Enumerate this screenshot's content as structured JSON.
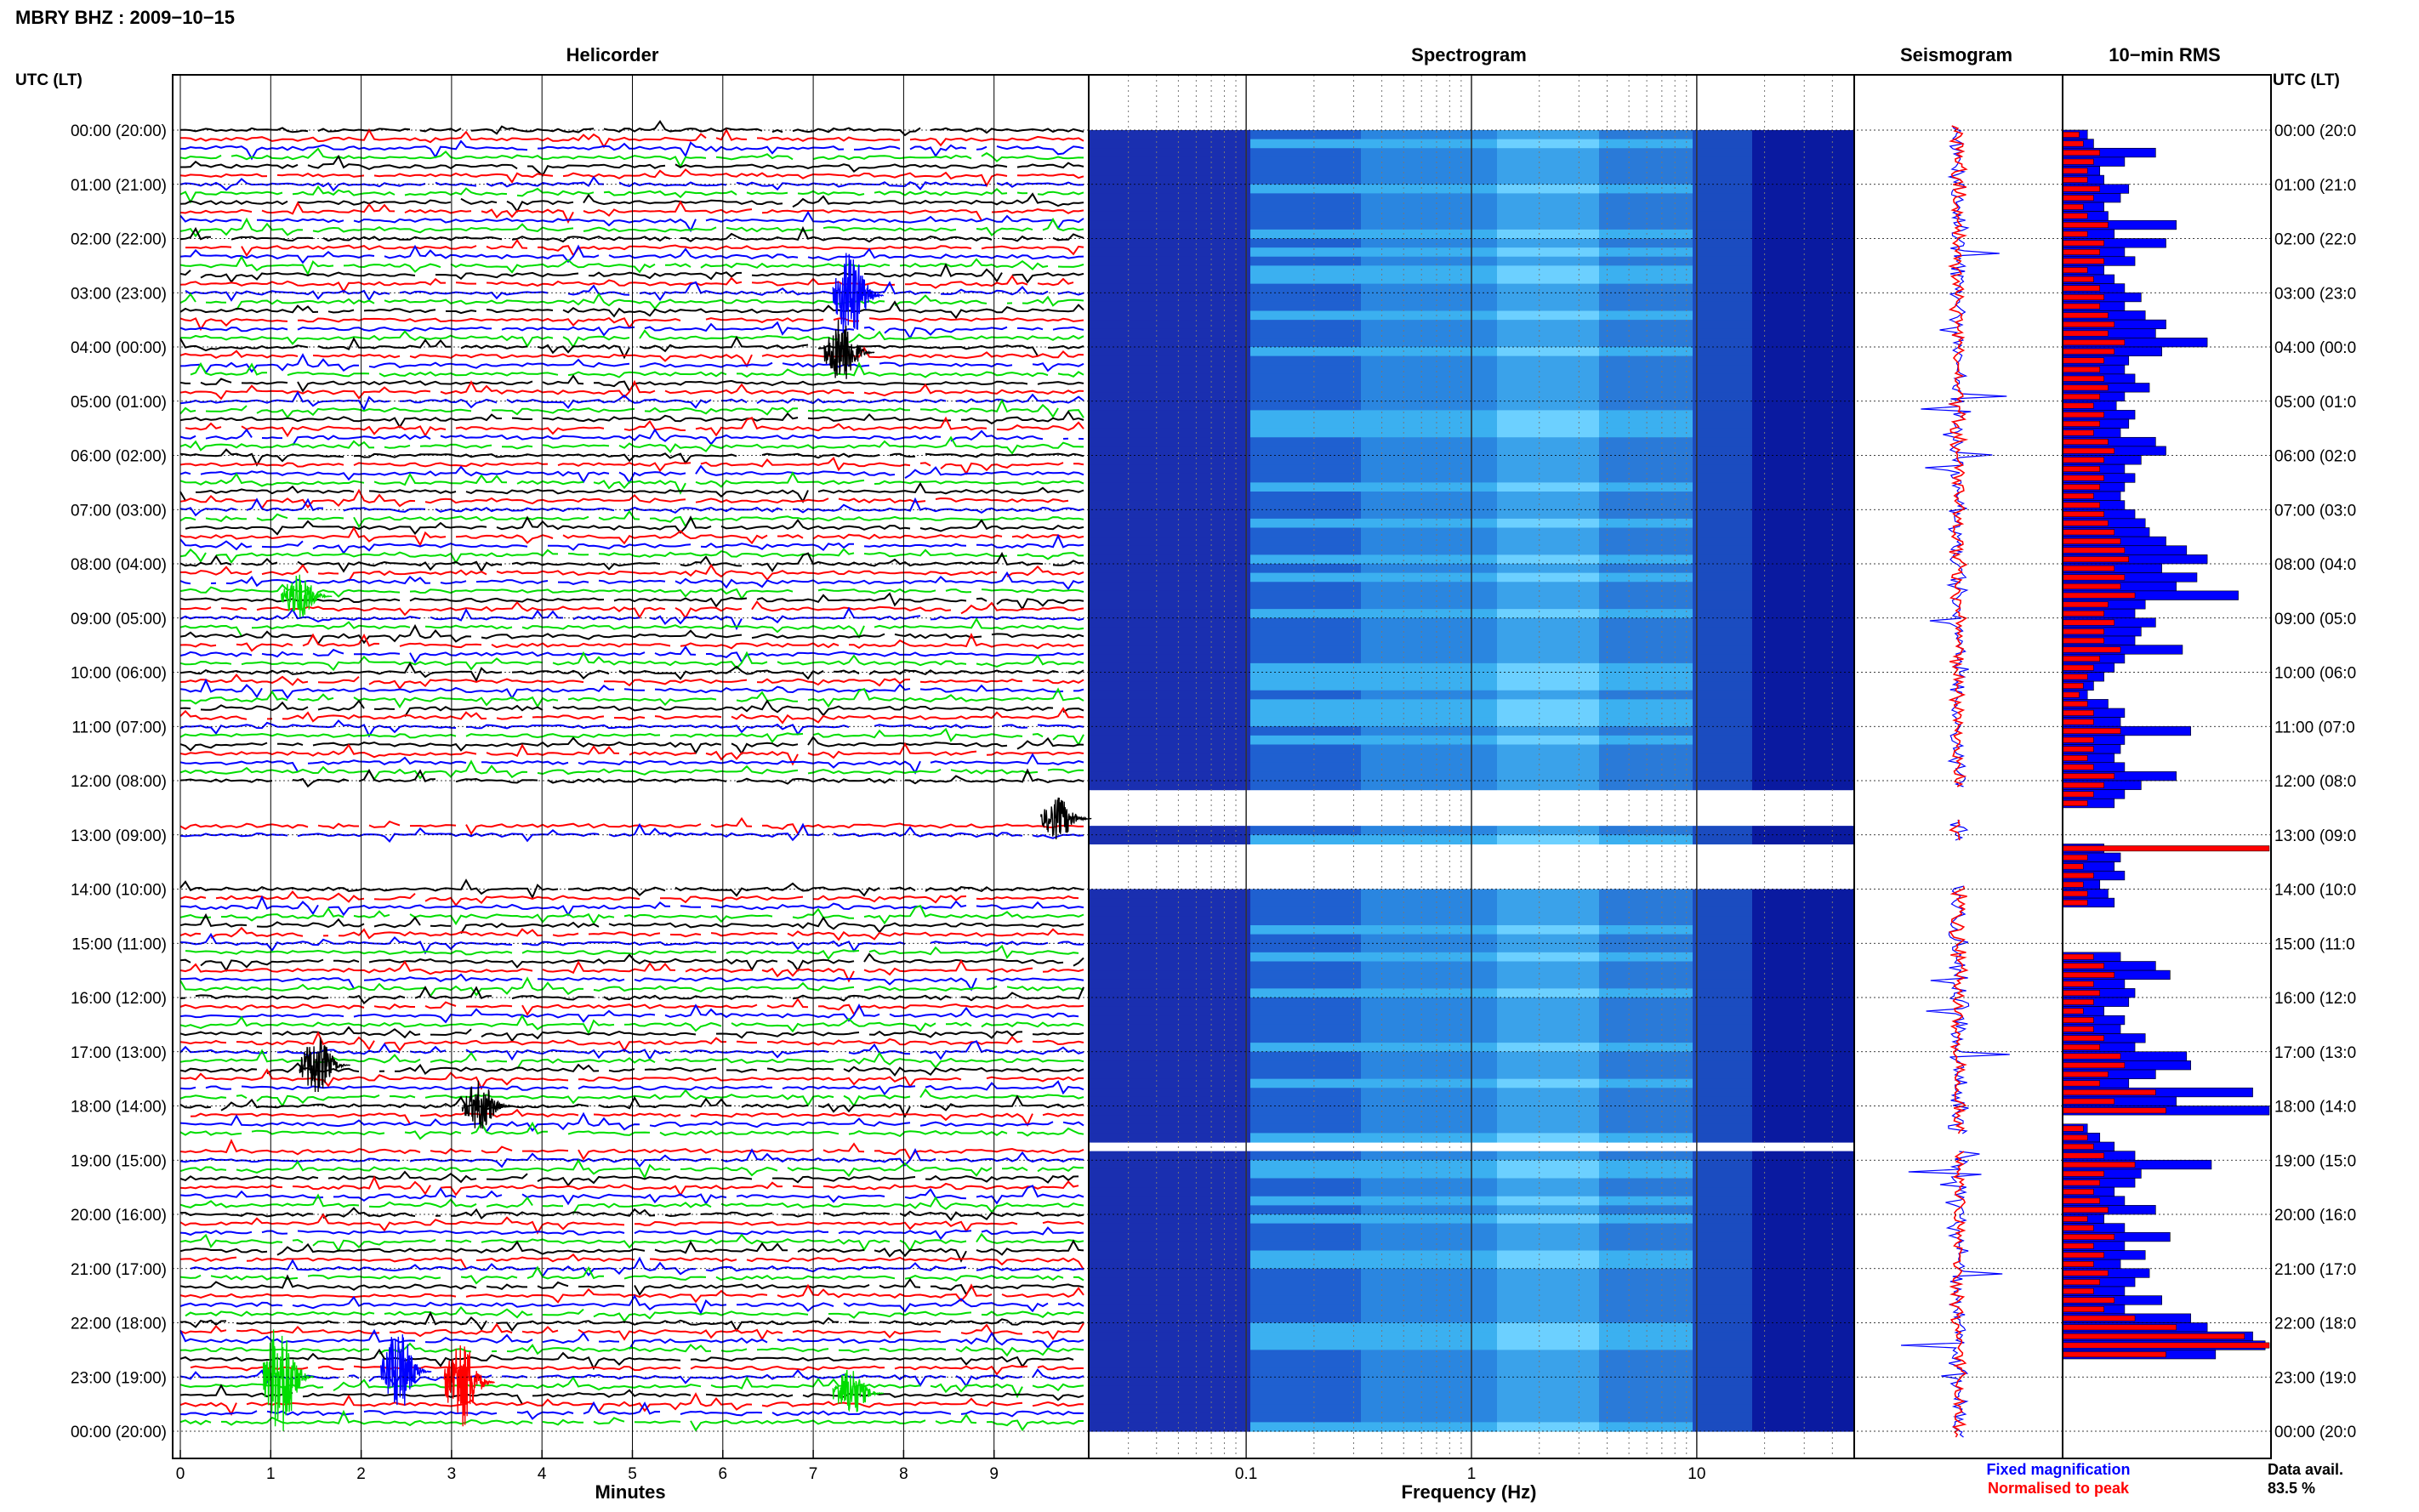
{
  "station_title": "MBRY BHZ : 2009−10−15",
  "panels": {
    "helicorder": "Helicorder",
    "spectrogram": "Spectrogram",
    "seismogram": "Seismogram",
    "rms": "10−min RMS"
  },
  "axis_header_left": "UTC (LT)",
  "axis_header_right": "UTC (LT)",
  "legend": {
    "fixed": "Fixed magnification",
    "normalised": "Normalised to peak",
    "fixed_color": "#0000ff",
    "normalised_color": "#ff0000"
  },
  "data_avail": {
    "label": "Data avail.",
    "value": "83.5 %"
  },
  "colors": {
    "trace_cycle": [
      "#000000",
      "#ff0000",
      "#0000ff",
      "#00dd00"
    ],
    "spec_low": "#0a1aa0",
    "spec_mid": "#1e8fe0",
    "spec_high": "#7fd4ff"
  },
  "chart_data": {
    "type": "heatmap",
    "time_labels": [
      "00:00 (20:00)",
      "01:00 (21:00)",
      "02:00 (22:00)",
      "03:00 (23:00)",
      "04:00 (00:00)",
      "05:00 (01:00)",
      "06:00 (02:00)",
      "07:00 (03:00)",
      "08:00 (04:00)",
      "09:00 (05:00)",
      "10:00 (06:00)",
      "11:00 (07:00)",
      "12:00 (08:00)",
      "13:00 (09:00)",
      "14:00 (10:00)",
      "15:00 (11:00)",
      "16:00 (12:00)",
      "17:00 (13:00)",
      "18:00 (14:00)",
      "19:00 (15:00)",
      "20:00 (16:00)",
      "21:00 (17:00)",
      "22:00 (18:00)",
      "23:00 (19:00)",
      "00:00 (20:00)"
    ],
    "time_labels_right": [
      "00:00 (20:0",
      "01:00 (21:0",
      "02:00 (22:0",
      "03:00 (23:0",
      "04:00 (00:0",
      "05:00 (01:0",
      "06:00 (02:0",
      "07:00 (03:0",
      "08:00 (04:0",
      "09:00 (05:0",
      "10:00 (06:0",
      "11:00 (07:0",
      "12:00 (08:0",
      "13:00 (09:0",
      "14:00 (10:0",
      "15:00 (11:0",
      "16:00 (12:0",
      "17:00 (13:0",
      "18:00 (14:0",
      "19:00 (15:0",
      "20:00 (16:0",
      "21:00 (17:0",
      "22:00 (18:0",
      "23:00 (19:0",
      "00:00 (20:0"
    ],
    "helicorder": {
      "xlabel": "Minutes",
      "x_ticks": [
        "0",
        "1",
        "2",
        "3",
        "4",
        "5",
        "6",
        "7",
        "8",
        "9"
      ],
      "xlim": [
        0,
        10
      ],
      "rows_per_hour": 6,
      "gaps_hours": [
        [
          12.15,
          12.7
        ],
        [
          13.1,
          13.9
        ],
        [
          18.55,
          18.8
        ]
      ]
    },
    "spectrogram": {
      "xlabel": "Frequency (Hz)",
      "x_ticks": [
        "0.1",
        "1",
        "10"
      ],
      "x_scale": "log",
      "xlim": [
        0.02,
        50
      ]
    },
    "rms_blue": [
      0.12,
      0.15,
      0.45,
      0.3,
      0.18,
      0.2,
      0.32,
      0.28,
      0.2,
      0.22,
      0.55,
      0.25,
      0.5,
      0.3,
      0.35,
      0.2,
      0.25,
      0.3,
      0.38,
      0.3,
      0.4,
      0.5,
      0.45,
      0.7,
      0.48,
      0.32,
      0.3,
      0.35,
      0.42,
      0.3,
      0.26,
      0.35,
      0.32,
      0.28,
      0.45,
      0.5,
      0.38,
      0.3,
      0.35,
      0.3,
      0.28,
      0.3,
      0.35,
      0.4,
      0.42,
      0.5,
      0.6,
      0.7,
      0.48,
      0.65,
      0.55,
      0.85,
      0.4,
      0.35,
      0.45,
      0.38,
      0.35,
      0.58,
      0.3,
      0.25,
      0.2,
      0.15,
      0.12,
      0.22,
      0.3,
      0.28,
      0.62,
      0.3,
      0.28,
      0.25,
      0.3,
      0.55,
      0.38,
      0.3,
      0.25,
      0.0,
      0.0,
      0.0,
      0.0,
      0.2,
      0.28,
      0.25,
      0.3,
      0.18,
      0.22,
      0.25,
      0.0,
      0.0,
      0.0,
      0.0,
      0.0,
      0.28,
      0.45,
      0.52,
      0.3,
      0.35,
      0.32,
      0.2,
      0.3,
      0.28,
      0.4,
      0.35,
      0.6,
      0.62,
      0.45,
      0.32,
      0.92,
      0.55,
      1.0,
      0.0,
      0.12,
      0.18,
      0.25,
      0.35,
      0.72,
      0.38,
      0.35,
      0.25,
      0.3,
      0.45,
      0.2,
      0.3,
      0.52,
      0.3,
      0.4,
      0.28,
      0.42,
      0.35,
      0.3,
      0.48,
      0.3,
      0.62,
      0.7,
      0.92,
      0.98,
      0.74
    ],
    "rms_red": [
      0.08,
      0.1,
      0.18,
      0.15,
      0.12,
      0.12,
      0.18,
      0.15,
      0.1,
      0.12,
      0.22,
      0.12,
      0.2,
      0.18,
      0.2,
      0.12,
      0.15,
      0.18,
      0.2,
      0.18,
      0.22,
      0.25,
      0.22,
      0.3,
      0.25,
      0.2,
      0.18,
      0.2,
      0.22,
      0.18,
      0.15,
      0.2,
      0.18,
      0.15,
      0.22,
      0.25,
      0.2,
      0.18,
      0.2,
      0.18,
      0.15,
      0.18,
      0.2,
      0.22,
      0.25,
      0.28,
      0.3,
      0.32,
      0.25,
      0.3,
      0.28,
      0.35,
      0.22,
      0.2,
      0.25,
      0.2,
      0.2,
      0.28,
      0.18,
      0.15,
      0.12,
      0.1,
      0.08,
      0.12,
      0.15,
      0.15,
      0.28,
      0.15,
      0.15,
      0.12,
      0.15,
      0.25,
      0.2,
      0.15,
      0.12,
      0.0,
      0.0,
      0.0,
      0.0,
      1.0,
      0.12,
      0.1,
      0.15,
      0.1,
      0.12,
      0.12,
      0.0,
      0.0,
      0.0,
      0.0,
      0.0,
      0.15,
      0.2,
      0.25,
      0.15,
      0.18,
      0.15,
      0.1,
      0.15,
      0.15,
      0.2,
      0.18,
      0.28,
      0.3,
      0.22,
      0.18,
      0.45,
      0.25,
      0.5,
      0.0,
      0.1,
      0.12,
      0.15,
      0.2,
      0.35,
      0.2,
      0.18,
      0.15,
      0.18,
      0.22,
      0.12,
      0.15,
      0.25,
      0.15,
      0.2,
      0.15,
      0.22,
      0.18,
      0.15,
      0.25,
      0.2,
      0.35,
      0.55,
      0.88,
      1.0,
      0.5
    ]
  }
}
